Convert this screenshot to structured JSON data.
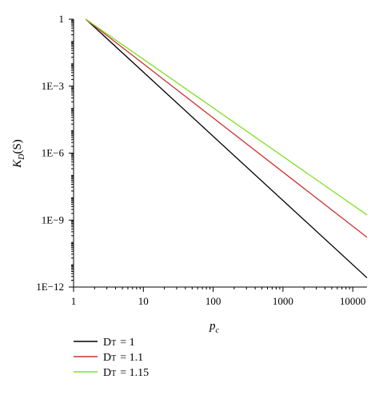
{
  "chart_data": {
    "type": "line",
    "xlabel": "p",
    "xlabel_sub": "c",
    "ylabel": "K",
    "ylabel_sub": "D",
    "ylabel_tail": "(S)",
    "x_scale": "log",
    "y_scale": "log",
    "xlim": [
      1,
      16000
    ],
    "ylim": [
      1e-12,
      1
    ],
    "x_ticks": [
      {
        "value": 1,
        "label": "1"
      },
      {
        "value": 10,
        "label": "10"
      },
      {
        "value": 100,
        "label": "100"
      },
      {
        "value": 1000,
        "label": "1000"
      },
      {
        "value": 10000,
        "label": "10000"
      }
    ],
    "y_ticks": [
      {
        "value": 1,
        "label": "1"
      },
      {
        "value": 0.001,
        "label": "1E−3"
      },
      {
        "value": 1e-06,
        "label": "1E−6"
      },
      {
        "value": 1e-09,
        "label": "1E−9"
      },
      {
        "value": 1e-12,
        "label": "1E−12"
      }
    ],
    "grid": false,
    "legend_position": "bottom-left",
    "series": [
      {
        "name": "D",
        "name_sub": "T",
        "name_value": "= 1",
        "color": "#000000",
        "x": [
          1.5,
          16000
        ],
        "y": [
          1,
          2.6e-12
        ]
      },
      {
        "name": "D",
        "name_sub": "T",
        "name_value": "= 1.1",
        "color": "#cc3333",
        "x": [
          1.5,
          16000
        ],
        "y": [
          1,
          1.7e-10
        ]
      },
      {
        "name": "D",
        "name_sub": "T",
        "name_value": "= 1.15",
        "color": "#80e020",
        "x": [
          1.5,
          16000
        ],
        "y": [
          1,
          1.7e-09
        ]
      }
    ]
  }
}
